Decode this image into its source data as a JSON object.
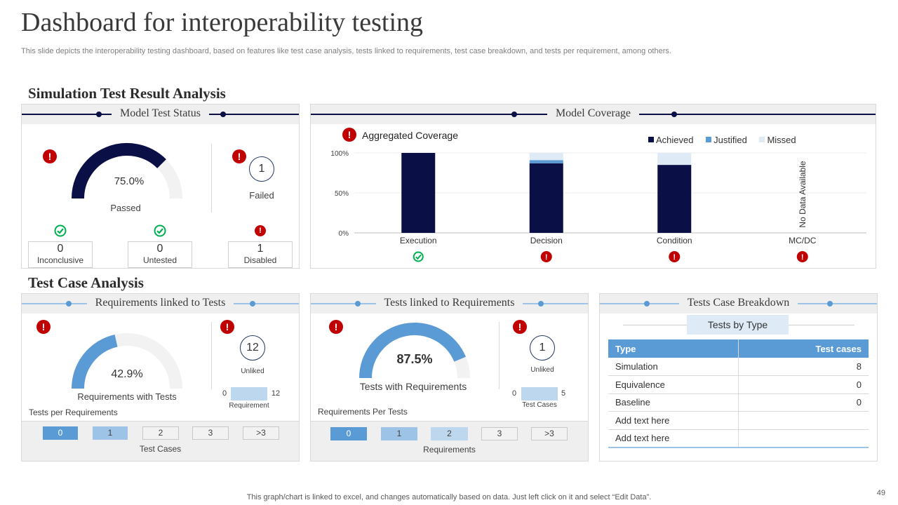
{
  "title": "Dashboard for interoperability testing",
  "subtitle": "This slide depicts the interoperability testing dashboard, based on features like test case analysis, tests linked to requirements, test case breakdown, and tests per requirement, among others.",
  "sections": {
    "simulation": "Simulation Test Result Analysis",
    "test_case": "Test Case Analysis"
  },
  "model_test_status": {
    "header": "Model Test Status",
    "gauge_value": 0.75,
    "gauge_label": "75.0%",
    "passed_label": "Passed",
    "failed_value": "1",
    "failed_label": "Failed",
    "stats": [
      {
        "value": "0",
        "label": "Inconclusive",
        "status": "ok"
      },
      {
        "value": "0",
        "label": "Untested",
        "status": "ok"
      },
      {
        "value": "1",
        "label": "Disabled",
        "status": "alert"
      }
    ]
  },
  "model_coverage": {
    "header": "Model Coverage",
    "chart_title": "Aggregated Coverage",
    "no_data_label": "No Data Available",
    "status_icons": [
      "ok",
      "alert",
      "alert",
      "alert"
    ]
  },
  "chart_data": {
    "type": "bar",
    "stacked": true,
    "title": "Aggregated Coverage",
    "categories": [
      "Execution",
      "Decision",
      "Condition",
      "MC/DC"
    ],
    "series": [
      {
        "name": "Achieved",
        "values": [
          100,
          87,
          85,
          null
        ]
      },
      {
        "name": "Justified",
        "values": [
          0,
          4,
          0,
          null
        ]
      },
      {
        "name": "Missed",
        "values": [
          0,
          9,
          15,
          null
        ]
      }
    ],
    "yticks": [
      "0%",
      "50%",
      "100%"
    ],
    "ylim": [
      0,
      100
    ],
    "legend": "top-right",
    "colors": {
      "Achieved": "#0a0f45",
      "Justified": "#5b9bd5",
      "Missed": "#deebf7"
    }
  },
  "requirements_linked": {
    "header": "Requirements linked to Tests",
    "gauge_value": 0.429,
    "gauge_label": "42.9%",
    "gauge_caption": "Requirements with Tests",
    "unlinked_value": "12",
    "unlinked_label": "Unliked",
    "bar_min": "0",
    "bar_max": "12",
    "bar_label": "Requirement",
    "per_label": "Tests per Requirements",
    "buckets": [
      "0",
      "1",
      "2",
      "3",
      ">3"
    ],
    "bucket_caption": "Test Cases"
  },
  "tests_linked": {
    "header": "Tests linked to Requirements",
    "gauge_value": 0.875,
    "gauge_label": "87.5%",
    "gauge_caption": "Tests with Requirements",
    "unlinked_value": "1",
    "unlinked_label": "Unliked",
    "bar_min": "0",
    "bar_max": "5",
    "bar_label": "Test Cases",
    "per_label": "Requirements  Per Tests",
    "buckets": [
      "0",
      "1",
      "2",
      "3",
      ">3"
    ],
    "bucket_caption": "Requirements"
  },
  "breakdown": {
    "header": "Tests Case Breakdown",
    "sub_title": "Tests by Type",
    "columns": [
      "Type",
      "Test cases"
    ],
    "rows": [
      [
        "Simulation",
        "8"
      ],
      [
        "Equivalence",
        "0"
      ],
      [
        "Baseline",
        "0"
      ],
      [
        "Add text here",
        ""
      ],
      [
        "Add text here",
        ""
      ]
    ]
  },
  "footer": "This graph/chart is linked to excel,  and changes automatically based on data. Just left click on it and select “Edit Data”.",
  "page_number": "49",
  "colors": {
    "navy": "#0a0f45",
    "blue": "#5b9bd5",
    "light_blue": "#9dc3e6",
    "pale_blue": "#bdd7ee",
    "alert": "#c00000",
    "ok": "#00b050"
  }
}
